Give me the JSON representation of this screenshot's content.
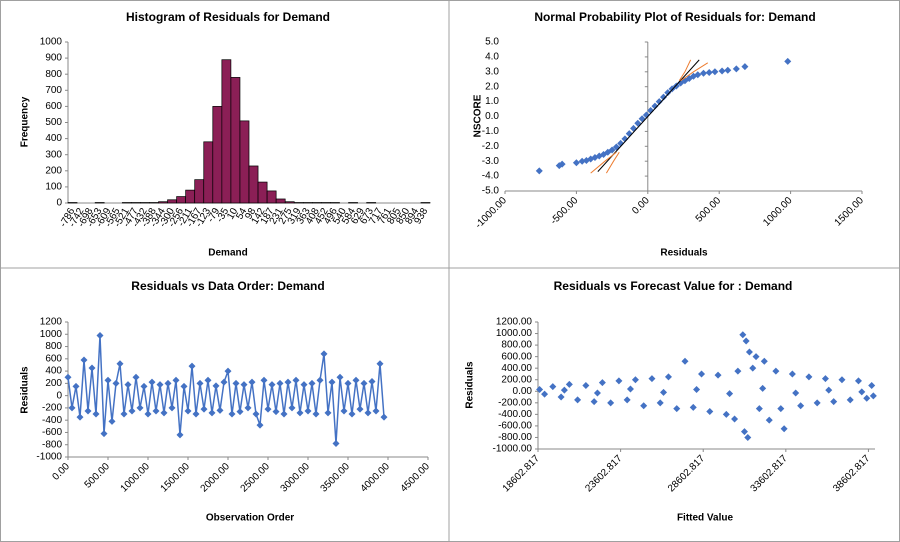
{
  "chart_data": [
    {
      "type": "bar",
      "title": "Histogram of Residuals for Demand",
      "x_label": "Demand",
      "y_label": "Frequency",
      "color": "#8b1f56",
      "categories": [
        "-786",
        "-742",
        "-698",
        "-653",
        "-609",
        "-565",
        "-521",
        "-477",
        "-432",
        "-388",
        "-344",
        "-300",
        "-256",
        "-211",
        "-167",
        "-123",
        "-79",
        "-35",
        "10",
        "54",
        "98",
        "142",
        "187",
        "231",
        "275",
        "319",
        "363",
        "408",
        "452",
        "496",
        "540",
        "584",
        "629",
        "673",
        "717",
        "761",
        "805",
        "850",
        "894",
        "938"
      ],
      "values": [
        3,
        0,
        0,
        3,
        0,
        0,
        3,
        3,
        3,
        3,
        8,
        20,
        40,
        80,
        145,
        380,
        600,
        890,
        780,
        510,
        230,
        130,
        75,
        25,
        8,
        3,
        3,
        3,
        3,
        3,
        0,
        3,
        0,
        3,
        0,
        0,
        0,
        0,
        0,
        3
      ],
      "ylim": [
        0,
        1000
      ],
      "yticks": [
        0,
        100,
        200,
        300,
        400,
        500,
        600,
        700,
        800,
        900,
        1000
      ]
    },
    {
      "type": "scatter",
      "title": "Normal Probability Plot of Residuals for: Demand",
      "x_label": "Residuals",
      "y_label": "NSCORE",
      "color": "#4472c4",
      "x": [
        -760,
        -620,
        -600,
        -500,
        -460,
        -430,
        -400,
        -370,
        -340,
        -310,
        -280,
        -250,
        -220,
        -190,
        -160,
        -130,
        -100,
        -70,
        -40,
        -10,
        20,
        50,
        80,
        110,
        140,
        170,
        200,
        230,
        260,
        290,
        320,
        350,
        390,
        430,
        470,
        520,
        560,
        620,
        680,
        980
      ],
      "values": [
        -3.65,
        -3.3,
        -3.2,
        -3.1,
        -3.0,
        -2.95,
        -2.85,
        -2.75,
        -2.65,
        -2.55,
        -2.4,
        -2.25,
        -2.05,
        -1.8,
        -1.5,
        -1.15,
        -0.8,
        -0.45,
        -0.15,
        0.1,
        0.4,
        0.7,
        1.0,
        1.3,
        1.6,
        1.85,
        2.05,
        2.25,
        2.4,
        2.55,
        2.7,
        2.8,
        2.9,
        2.95,
        3.0,
        3.05,
        3.1,
        3.2,
        3.35,
        3.7
      ],
      "lines": [
        {
          "color": "#000000",
          "x": [
            -350,
            360
          ],
          "y": [
            -3.7,
            3.8
          ]
        },
        {
          "color": "#ed7d31",
          "x": [
            -400,
            -300,
            -220
          ],
          "y": [
            -3.8,
            -3.0,
            -2.4
          ]
        },
        {
          "color": "#ed7d31",
          "x": [
            -290,
            -240,
            -200
          ],
          "y": [
            -3.8,
            -3.0,
            -2.4
          ]
        },
        {
          "color": "#ed7d31",
          "x": [
            220,
            260,
            300
          ],
          "y": [
            2.4,
            3.0,
            3.8
          ]
        },
        {
          "color": "#ed7d31",
          "x": [
            230,
            320,
            420
          ],
          "y": [
            2.4,
            3.0,
            3.6
          ]
        }
      ],
      "xlim": [
        -1000,
        1500
      ],
      "xticks": [
        {
          "value": -1000,
          "label": "-1000.00"
        },
        {
          "value": -500,
          "label": "-500.00"
        },
        {
          "value": 0,
          "label": "0.00"
        },
        {
          "value": 500,
          "label": "500.00"
        },
        {
          "value": 1000,
          "label": "1000.00"
        },
        {
          "value": 1500,
          "label": "1500.00"
        }
      ],
      "ylim": [
        -5,
        5
      ],
      "yticks": [
        {
          "value": -5,
          "label": "-5.0"
        },
        {
          "value": -4,
          "label": "-4.0"
        },
        {
          "value": -3,
          "label": "-3.0"
        },
        {
          "value": -2,
          "label": "-2.0"
        },
        {
          "value": -1,
          "label": "-1.0"
        },
        {
          "value": 0,
          "label": "0.0"
        },
        {
          "value": 1,
          "label": "1.0"
        },
        {
          "value": 2,
          "label": "2.0"
        },
        {
          "value": 3,
          "label": "3.0"
        },
        {
          "value": 4,
          "label": "4.0"
        },
        {
          "value": 5,
          "label": "5.0"
        }
      ]
    },
    {
      "type": "line",
      "title": "Residuals vs Data Order: Demand",
      "x_label": "Observation Order",
      "y_label": "Residuals",
      "color": "#4472c4",
      "x": [
        0,
        50,
        100,
        150,
        200,
        250,
        300,
        350,
        400,
        450,
        500,
        550,
        600,
        650,
        700,
        750,
        800,
        850,
        900,
        950,
        1000,
        1050,
        1100,
        1150,
        1200,
        1250,
        1300,
        1350,
        1400,
        1450,
        1500,
        1550,
        1600,
        1650,
        1700,
        1750,
        1800,
        1850,
        1900,
        1950,
        2000,
        2050,
        2100,
        2150,
        2200,
        2250,
        2300,
        2350,
        2400,
        2450,
        2500,
        2550,
        2600,
        2650,
        2700,
        2750,
        2800,
        2850,
        2900,
        2950,
        3000,
        3050,
        3100,
        3150,
        3200,
        3250,
        3300,
        3350,
        3400,
        3450,
        3500,
        3550,
        3600,
        3650,
        3700,
        3750,
        3800,
        3850,
        3900,
        3950
      ],
      "values": [
        300,
        -200,
        150,
        -350,
        580,
        -250,
        450,
        -300,
        980,
        -620,
        250,
        -420,
        200,
        520,
        -300,
        180,
        -250,
        300,
        -200,
        150,
        -300,
        220,
        -250,
        180,
        -280,
        200,
        -200,
        250,
        -640,
        150,
        -250,
        480,
        -300,
        200,
        -220,
        250,
        -280,
        160,
        -240,
        220,
        400,
        -300,
        200,
        -260,
        180,
        -200,
        220,
        -300,
        -480,
        250,
        -220,
        180,
        -260,
        200,
        -300,
        220,
        -200,
        250,
        -280,
        180,
        -250,
        200,
        -300,
        250,
        680,
        -280,
        220,
        -780,
        300,
        -250,
        200,
        -300,
        250,
        -220,
        200,
        -280,
        230,
        -250,
        520,
        -350
      ],
      "xlim": [
        0,
        4500
      ],
      "xticks": [
        {
          "value": 0,
          "label": "0.00"
        },
        {
          "value": 500,
          "label": "500.00"
        },
        {
          "value": 1000,
          "label": "1000.00"
        },
        {
          "value": 1500,
          "label": "1500.00"
        },
        {
          "value": 2000,
          "label": "2000.00"
        },
        {
          "value": 2500,
          "label": "2500.00"
        },
        {
          "value": 3000,
          "label": "3000.00"
        },
        {
          "value": 3500,
          "label": "3500.00"
        },
        {
          "value": 4000,
          "label": "4000.00"
        },
        {
          "value": 4500,
          "label": "4500.00"
        }
      ],
      "ylim": [
        -1000,
        1200
      ],
      "yticks": [
        -1000,
        -800,
        -600,
        -400,
        -200,
        0,
        200,
        400,
        600,
        800,
        1000,
        1200
      ]
    },
    {
      "type": "scatter",
      "title": "Residuals vs Forecast Value for : Demand",
      "x_label": "Fitted Value",
      "y_label": "Residuals",
      "color": "#4472c4",
      "x": [
        18700,
        19000,
        19500,
        20000,
        20500,
        21000,
        21500,
        22000,
        22500,
        23000,
        23500,
        24000,
        24500,
        25000,
        25500,
        26000,
        26500,
        27000,
        27500,
        28000,
        28500,
        29000,
        29500,
        30000,
        30500,
        30700,
        31000,
        31100,
        31200,
        31300,
        31400,
        31600,
        31800,
        32000,
        32300,
        32600,
        33000,
        33300,
        33500,
        34000,
        34500,
        35000,
        35500,
        36000,
        36500,
        37000,
        37500,
        38000,
        38500,
        38800,
        38900,
        20200,
        22200,
        24200,
        26200,
        28200,
        30200,
        32200,
        34200,
        36200,
        38200
      ],
      "values": [
        30,
        -50,
        80,
        -100,
        120,
        -150,
        100,
        -180,
        150,
        -200,
        180,
        -150,
        200,
        -250,
        220,
        -200,
        250,
        -300,
        520,
        -280,
        300,
        -350,
        280,
        -400,
        -480,
        350,
        980,
        -700,
        870,
        -800,
        680,
        400,
        600,
        -300,
        520,
        -500,
        350,
        -300,
        -650,
        300,
        -250,
        250,
        -200,
        220,
        -180,
        200,
        -150,
        180,
        -120,
        100,
        -80,
        20,
        -30,
        40,
        -20,
        30,
        -40,
        50,
        -30,
        20,
        -10
      ],
      "xlim": [
        18602.817,
        39000
      ],
      "xticks": [
        18602.817,
        23602.817,
        28602.817,
        33602.817,
        38602.817
      ],
      "ylim": [
        -1000,
        1200
      ],
      "yticks": [
        {
          "value": -1000,
          "label": "-1000.00"
        },
        {
          "value": -800,
          "label": "-800.00"
        },
        {
          "value": -600,
          "label": "-600.00"
        },
        {
          "value": -400,
          "label": "-400.00"
        },
        {
          "value": -200,
          "label": "-200.00"
        },
        {
          "value": 0,
          "label": "0.00"
        },
        {
          "value": 200,
          "label": "200.00"
        },
        {
          "value": 400,
          "label": "400.00"
        },
        {
          "value": 600,
          "label": "600.00"
        },
        {
          "value": 800,
          "label": "800.00"
        },
        {
          "value": 1000,
          "label": "1000.00"
        },
        {
          "value": 1200,
          "label": "1200.00"
        }
      ]
    }
  ]
}
